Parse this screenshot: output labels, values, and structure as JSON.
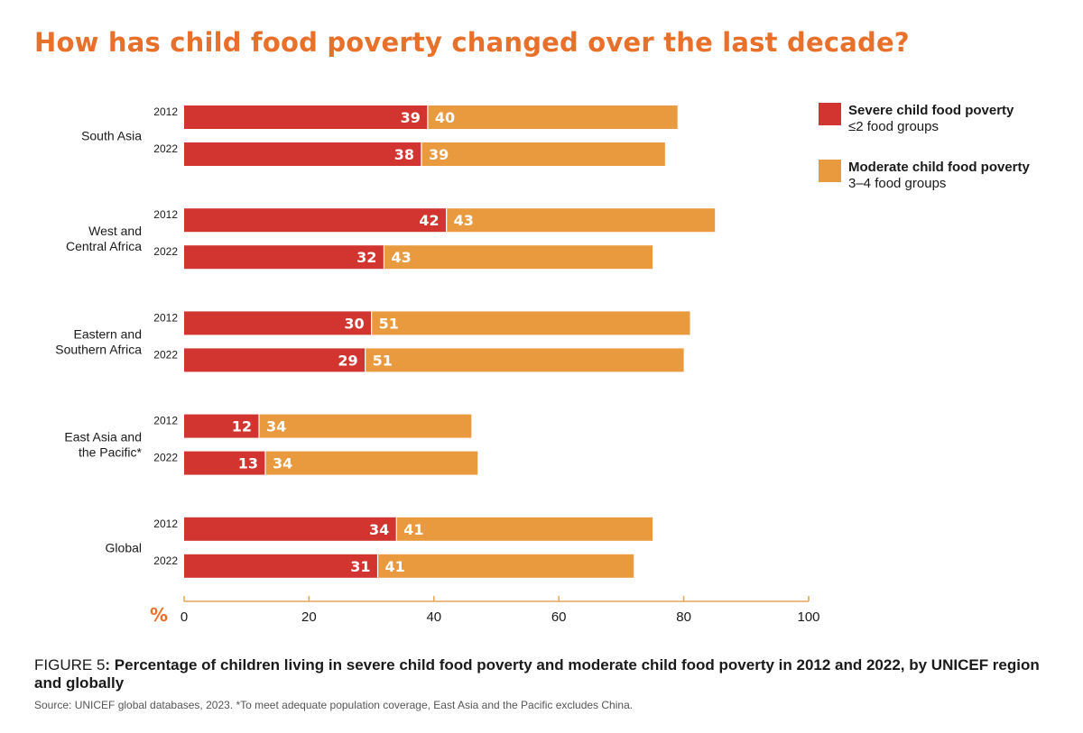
{
  "title": "How has child food poverty changed over the last decade?",
  "legend": [
    {
      "name": "Severe child food poverty",
      "sub": "≤2 food groups",
      "color": "#D2352F"
    },
    {
      "name": "Moderate child food poverty",
      "sub": "3–4 food groups",
      "color": "#EA9A3E"
    }
  ],
  "caption": {
    "label": "FIGURE 5",
    "text": ": Percentage of children living in severe child food poverty and moderate child food poverty in 2012 and 2022, by UNICEF region and globally"
  },
  "source": "Source: UNICEF global databases, 2023. *To meet adequate population coverage, East Asia and the Pacific excludes China.",
  "chart_data": {
    "type": "bar",
    "orientation": "horizontal",
    "stacked": true,
    "groups": [
      {
        "label": [
          "South Asia"
        ],
        "years": [
          "2012",
          "2022"
        ],
        "severe": [
          39,
          38
        ],
        "moderate": [
          40,
          39
        ]
      },
      {
        "label": [
          "West and",
          "Central Africa"
        ],
        "years": [
          "2012",
          "2022"
        ],
        "severe": [
          42,
          32
        ],
        "moderate": [
          43,
          43
        ]
      },
      {
        "label": [
          "Eastern and",
          "Southern Africa"
        ],
        "years": [
          "2012",
          "2022"
        ],
        "severe": [
          30,
          29
        ],
        "moderate": [
          51,
          51
        ]
      },
      {
        "label": [
          "East Asia and",
          "the Pacific*"
        ],
        "years": [
          "2012",
          "2022"
        ],
        "severe": [
          12,
          13
        ],
        "moderate": [
          34,
          34
        ]
      },
      {
        "label": [
          "Global"
        ],
        "years": [
          "2012",
          "2022"
        ],
        "severe": [
          34,
          31
        ],
        "moderate": [
          41,
          41
        ]
      }
    ],
    "series": [
      {
        "name": "Severe child food poverty",
        "color": "#D2352F"
      },
      {
        "name": "Moderate child food poverty",
        "color": "#EA9A3E"
      }
    ],
    "xlabel": "%",
    "xlim": [
      0,
      100
    ],
    "xticks": [
      0,
      20,
      40,
      60,
      80,
      100
    ],
    "axis_color": "#E8A35A",
    "grid": false,
    "legend_position": "top-right"
  }
}
